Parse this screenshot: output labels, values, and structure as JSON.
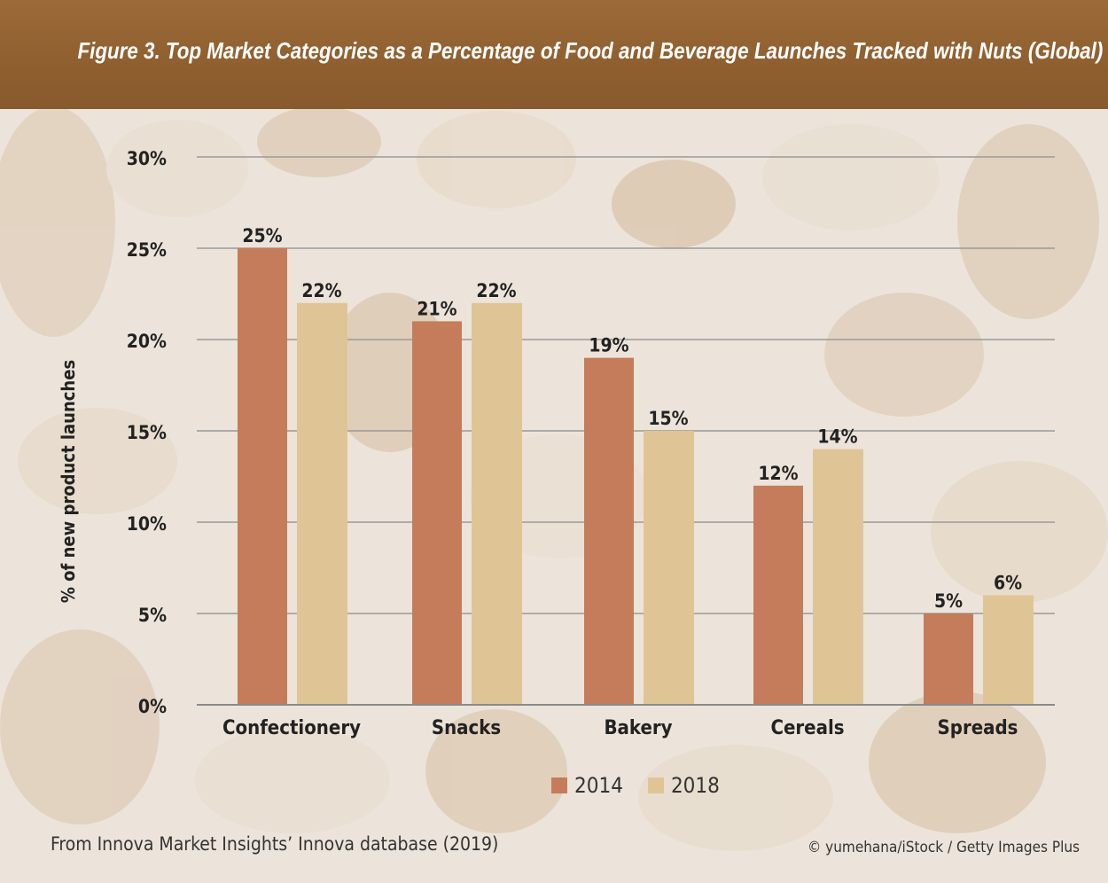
{
  "title": "Figure 3. Top Market Categories as a Percentage of Food and Beverage Launches Tracked with Nuts (Global)",
  "source": "From Innova Market Insights’ Innova database (2019)",
  "credit": "© yumehana/iStock / Getty Images Plus",
  "colors": {
    "banner": "#8f5f2f",
    "series_2014": "#c47c5a",
    "series_2018": "#dfc596",
    "grid": "#9a9a9a"
  },
  "chart_data": {
    "type": "bar",
    "title": "Figure 3. Top Market Categories as a Percentage of Food and Beverage Launches Tracked with Nuts (Global)",
    "xlabel": "",
    "ylabel": "% of new product launches",
    "categories": [
      "Confectionery",
      "Snacks",
      "Bakery",
      "Cereals",
      "Spreads"
    ],
    "series": [
      {
        "name": "2014",
        "values": [
          25,
          21,
          19,
          12,
          5
        ],
        "labels": [
          "25%",
          "21%",
          "19%",
          "12%",
          "5%"
        ]
      },
      {
        "name": "2018",
        "values": [
          22,
          22,
          15,
          14,
          6
        ],
        "labels": [
          "22%",
          "22%",
          "15%",
          "14%",
          "6%"
        ]
      }
    ],
    "ylim": [
      0,
      30
    ],
    "yticks": [
      "0%",
      "5%",
      "10%",
      "15%",
      "20%",
      "25%",
      "30%"
    ],
    "grid": true,
    "legend": "bottom-center"
  }
}
